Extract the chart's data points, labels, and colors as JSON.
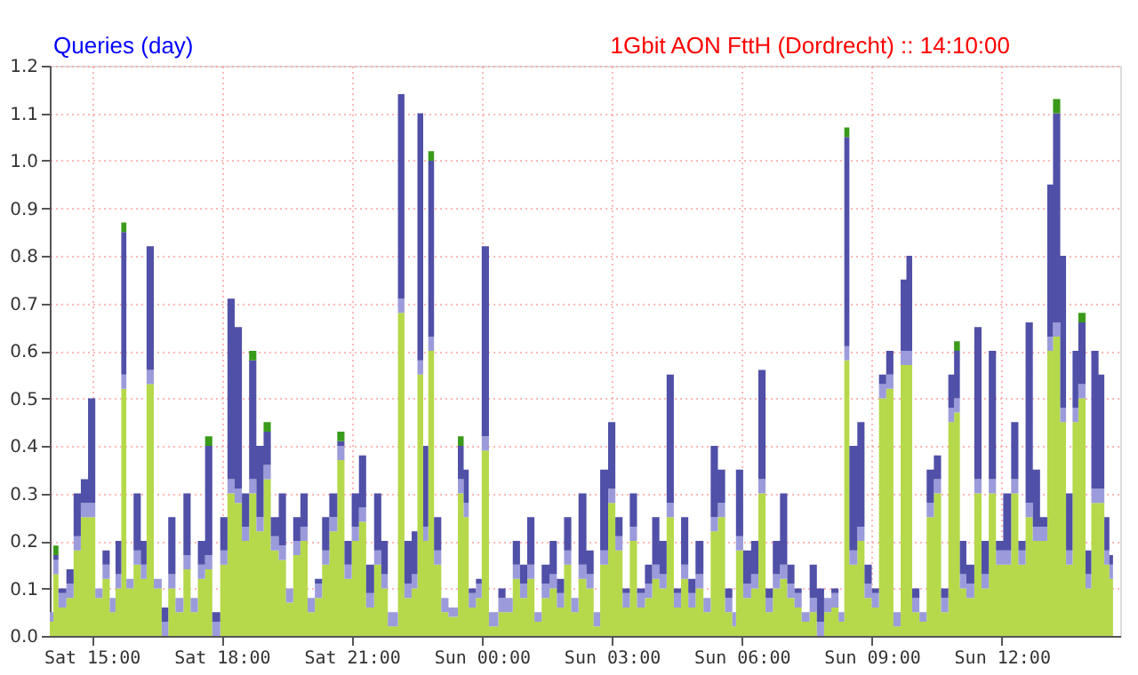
{
  "chart_data": {
    "type": "area",
    "stacked": true,
    "title": "Queries (day)",
    "subtitle": "1Gbit AON FttH (Dordrecht) ::  14:10:00",
    "x": [
      "2000-01-01T14:02",
      "2000-01-01T14:07",
      "2000-01-01T14:14",
      "2000-01-01T14:25",
      "2000-01-01T14:35",
      "2000-01-01T14:45",
      "2000-01-01T14:55",
      "2000-01-01T15:05",
      "2000-01-01T15:15",
      "2000-01-01T15:25",
      "2000-01-01T15:33",
      "2000-01-01T15:41",
      "2000-01-01T15:48",
      "2000-01-01T15:58",
      "2000-01-01T16:08",
      "2000-01-01T16:16",
      "2000-01-01T16:26",
      "2000-01-01T16:37",
      "2000-01-01T16:46",
      "2000-01-01T16:56",
      "2000-01-01T17:07",
      "2000-01-01T17:17",
      "2000-01-01T17:27",
      "2000-01-01T17:37",
      "2000-01-01T17:47",
      "2000-01-01T17:58",
      "2000-01-01T18:08",
      "2000-01-01T18:18",
      "2000-01-01T18:28",
      "2000-01-01T18:38",
      "2000-01-01T18:48",
      "2000-01-01T18:58",
      "2000-01-01T19:08",
      "2000-01-01T19:19",
      "2000-01-01T19:29",
      "2000-01-01T19:39",
      "2000-01-01T19:49",
      "2000-01-01T19:59",
      "2000-01-01T20:09",
      "2000-01-01T20:19",
      "2000-01-01T20:29",
      "2000-01-01T20:40",
      "2000-01-01T20:50",
      "2000-01-01T21:00",
      "2000-01-01T21:10",
      "2000-01-01T21:20",
      "2000-01-01T21:31",
      "2000-01-01T21:41",
      "2000-01-01T21:50",
      "2000-01-01T22:04",
      "2000-01-01T22:13",
      "2000-01-01T22:23",
      "2000-01-01T22:31",
      "2000-01-01T22:39",
      "2000-01-01T22:46",
      "2000-01-01T22:54",
      "2000-01-01T23:04",
      "2000-01-01T23:14",
      "2000-01-01T23:27",
      "2000-01-01T23:35",
      "2000-01-01T23:42",
      "2000-01-01T23:52",
      "2000-01-02T00:00",
      "2000-01-02T00:10",
      "2000-01-02T00:23",
      "2000-01-02T00:33",
      "2000-01-02T00:43",
      "2000-01-02T00:53",
      "2000-01-02T01:03",
      "2000-01-02T01:13",
      "2000-01-02T01:23",
      "2000-01-02T01:34",
      "2000-01-02T01:44",
      "2000-01-02T01:54",
      "2000-01-02T02:04",
      "2000-01-02T02:14",
      "2000-01-02T02:25",
      "2000-01-02T02:35",
      "2000-01-02T02:44",
      "2000-01-02T02:55",
      "2000-01-02T03:05",
      "2000-01-02T03:15",
      "2000-01-02T03:25",
      "2000-01-02T03:35",
      "2000-01-02T03:46",
      "2000-01-02T03:56",
      "2000-01-02T04:06",
      "2000-01-02T04:16",
      "2000-01-02T04:26",
      "2000-01-02T04:36",
      "2000-01-02T04:46",
      "2000-01-02T04:56",
      "2000-01-02T05:07",
      "2000-01-02T05:17",
      "2000-01-02T05:27",
      "2000-01-02T05:37",
      "2000-01-02T05:47",
      "2000-01-02T05:52",
      "2000-01-02T06:02",
      "2000-01-02T06:13",
      "2000-01-02T06:23",
      "2000-01-02T06:33",
      "2000-01-02T06:43",
      "2000-01-02T06:53",
      "2000-01-02T07:03",
      "2000-01-02T07:13",
      "2000-01-02T07:23",
      "2000-01-02T07:34",
      "2000-01-02T07:44",
      "2000-01-02T07:54",
      "2000-01-02T08:04",
      "2000-01-02T08:14",
      "2000-01-02T08:22",
      "2000-01-02T08:29",
      "2000-01-02T08:40",
      "2000-01-02T08:50",
      "2000-01-02T09:00",
      "2000-01-02T09:10",
      "2000-01-02T09:20",
      "2000-01-02T09:30",
      "2000-01-02T09:40",
      "2000-01-02T09:48",
      "2000-01-02T09:56",
      "2000-01-02T10:06",
      "2000-01-02T10:16",
      "2000-01-02T10:26",
      "2000-01-02T10:36",
      "2000-01-02T10:46",
      "2000-01-02T10:54",
      "2000-01-02T11:02",
      "2000-01-02T11:11",
      "2000-01-02T11:22",
      "2000-01-02T11:32",
      "2000-01-02T11:42",
      "2000-01-02T11:52",
      "2000-01-02T12:02",
      "2000-01-02T12:13",
      "2000-01-02T12:23",
      "2000-01-02T12:33",
      "2000-01-02T12:43",
      "2000-01-02T12:53",
      "2000-01-02T13:03",
      "2000-01-02T13:11",
      "2000-01-02T13:21",
      "2000-01-02T13:29",
      "2000-01-02T13:38",
      "2000-01-02T13:46",
      "2000-01-02T13:56",
      "2000-01-02T14:04",
      "2000-01-02T14:14",
      "2000-01-02T14:22",
      "2000-01-02T14:29",
      "2000-01-02T14:34"
    ],
    "series": [
      {
        "color": "#b5d94a",
        "values": [
          0.03,
          0.13,
          0.06,
          0.08,
          0.18,
          0.25,
          0.25,
          0.08,
          0.12,
          0.05,
          0.1,
          0.52,
          0.1,
          0.15,
          0.12,
          0.53,
          0.1,
          0,
          0.1,
          0.05,
          0.14,
          0.05,
          0.12,
          0.14,
          0,
          0.15,
          0.3,
          0.28,
          0.2,
          0.3,
          0.22,
          0.33,
          0.18,
          0.16,
          0.07,
          0.17,
          0.2,
          0.05,
          0.08,
          0.15,
          0.22,
          0.37,
          0.12,
          0.2,
          0.24,
          0.06,
          0.15,
          0.1,
          0.02,
          0.68,
          0.08,
          0.1,
          0.55,
          0.2,
          0.6,
          0.15,
          0.05,
          0.04,
          0.3,
          0.25,
          0.06,
          0.08,
          0.39,
          0.02,
          0.05,
          0.05,
          0.12,
          0.08,
          0.12,
          0.03,
          0.08,
          0.1,
          0.06,
          0.15,
          0.05,
          0.12,
          0.1,
          0.02,
          0.15,
          0.28,
          0.18,
          0.06,
          0.2,
          0.06,
          0.08,
          0.12,
          0.1,
          0.25,
          0.06,
          0.12,
          0.06,
          0.1,
          0.05,
          0.22,
          0.25,
          0.05,
          0.02,
          0.18,
          0.08,
          0.1,
          0.3,
          0.05,
          0.1,
          0.12,
          0.08,
          0.06,
          0.03,
          0.05,
          0,
          0.05,
          0.06,
          0.03,
          0.58,
          0.15,
          0.2,
          0.08,
          0.06,
          0.5,
          0.52,
          0.02,
          0.57,
          0.57,
          0.05,
          0.03,
          0.25,
          0.3,
          0.05,
          0.45,
          0.47,
          0.1,
          0.08,
          0.3,
          0.1,
          0.3,
          0.15,
          0.15,
          0.3,
          0.15,
          0.25,
          0.2,
          0.2,
          0.6,
          0.63,
          0.45,
          0.15,
          0.45,
          0.5,
          0.1,
          0.28,
          0.28,
          0.15,
          0.12,
          0.1
        ]
      },
      {
        "color": "#9b9bdb",
        "values": [
          0.02,
          0.03,
          0.03,
          0.03,
          0.03,
          0.03,
          0.03,
          0.02,
          0.03,
          0.03,
          0.03,
          0.03,
          0.02,
          0.03,
          0.03,
          0.03,
          0.02,
          0.03,
          0.03,
          0.03,
          0.03,
          0.03,
          0.03,
          0.03,
          0.03,
          0.03,
          0.03,
          0.03,
          0.03,
          0.03,
          0.03,
          0.03,
          0.03,
          0.03,
          0.03,
          0.03,
          0.03,
          0.03,
          0.03,
          0.03,
          0.03,
          0.03,
          0.03,
          0.03,
          0.03,
          0.03,
          0.03,
          0.03,
          0.03,
          0.03,
          0.03,
          0.03,
          0.03,
          0.03,
          0.03,
          0.03,
          0.03,
          0.02,
          0.03,
          0.03,
          0.03,
          0.03,
          0.03,
          0.03,
          0.03,
          0.03,
          0.03,
          0.03,
          0.03,
          0.02,
          0.03,
          0.03,
          0.03,
          0.03,
          0.03,
          0.03,
          0.03,
          0.03,
          0.03,
          0.03,
          0.03,
          0.03,
          0.03,
          0.03,
          0.03,
          0.03,
          0.03,
          0.03,
          0.03,
          0.03,
          0.03,
          0.03,
          0.03,
          0.03,
          0.03,
          0.03,
          0.03,
          0.03,
          0.03,
          0.03,
          0.03,
          0.03,
          0.03,
          0.03,
          0.03,
          0.03,
          0.02,
          0.03,
          0.03,
          0.03,
          0.03,
          0.02,
          0.03,
          0.03,
          0.03,
          0.03,
          0.03,
          0.03,
          0.03,
          0.03,
          0.03,
          0.03,
          0.03,
          0.02,
          0.03,
          0.03,
          0.03,
          0.03,
          0.03,
          0.03,
          0.03,
          0.03,
          0.03,
          0.03,
          0.03,
          0.03,
          0.03,
          0.03,
          0.03,
          0.03,
          0.03,
          0.03,
          0.03,
          0.03,
          0.03,
          0.03,
          0.03,
          0.03,
          0.03,
          0.03,
          0.03,
          0.03,
          0.03
        ]
      },
      {
        "color": "#5050a8",
        "values": [
          0,
          0.01,
          0.01,
          0.03,
          0.09,
          0.05,
          0.22,
          0,
          0.03,
          0,
          0.07,
          0.3,
          0,
          0.12,
          0.05,
          0.26,
          0,
          0.03,
          0.12,
          0,
          0.13,
          0,
          0.05,
          0.23,
          0.02,
          0.07,
          0.38,
          0.34,
          0.07,
          0.25,
          0.15,
          0.07,
          0.04,
          0.11,
          0,
          0.05,
          0.07,
          0,
          0.01,
          0.07,
          0.05,
          0.01,
          0.05,
          0.07,
          0.11,
          0.06,
          0.12,
          0.07,
          0,
          0.43,
          0.09,
          0.09,
          0.52,
          0.17,
          0.37,
          0.07,
          0,
          0,
          0.07,
          0.07,
          0.01,
          0.01,
          0.4,
          0,
          0.02,
          0,
          0.05,
          0.04,
          0.1,
          0,
          0.04,
          0.07,
          0.03,
          0.07,
          0,
          0.15,
          0.05,
          0,
          0.17,
          0.14,
          0.04,
          0.01,
          0.07,
          0.01,
          0.04,
          0.1,
          0.07,
          0.27,
          0.01,
          0.1,
          0.03,
          0.07,
          0,
          0.15,
          0.07,
          0.02,
          0,
          0.14,
          0.07,
          0.07,
          0.23,
          0.02,
          0.07,
          0.15,
          0.04,
          0.01,
          0,
          0.07,
          0.07,
          0,
          0.01,
          0,
          0.44,
          0.22,
          0.22,
          0.04,
          0.01,
          0.02,
          0.05,
          0,
          0.15,
          0.2,
          0.02,
          0,
          0.07,
          0.05,
          0.02,
          0.07,
          0.1,
          0.07,
          0.04,
          0.32,
          0.07,
          0.27,
          0.02,
          0.12,
          0.12,
          0.02,
          0.38,
          0.12,
          0.02,
          0.32,
          0.44,
          0.32,
          0.12,
          0.12,
          0.13,
          0.05,
          0.29,
          0.24,
          0.07,
          0.02,
          0.03
        ]
      },
      {
        "color": "#3a9a1a",
        "values": [
          0,
          0.02,
          0,
          0,
          0,
          0,
          0,
          0,
          0,
          0,
          0,
          0.02,
          0,
          0,
          0,
          0,
          0,
          0,
          0,
          0,
          0,
          0,
          0,
          0.02,
          0,
          0,
          0,
          0,
          0,
          0.02,
          0,
          0.02,
          0,
          0,
          0,
          0,
          0,
          0,
          0,
          0,
          0,
          0.02,
          0,
          0,
          0,
          0,
          0,
          0,
          0,
          0,
          0,
          0,
          0,
          0,
          0.02,
          0,
          0,
          0,
          0.02,
          0,
          0,
          0,
          0,
          0,
          0,
          0,
          0,
          0,
          0,
          0,
          0,
          0,
          0,
          0,
          0,
          0,
          0,
          0,
          0,
          0,
          0,
          0,
          0,
          0,
          0,
          0,
          0,
          0,
          0,
          0,
          0,
          0,
          0,
          0,
          0,
          0,
          0,
          0,
          0,
          0,
          0,
          0,
          0,
          0,
          0,
          0,
          0,
          0,
          0,
          0,
          0,
          0,
          0.02,
          0,
          0,
          0,
          0,
          0,
          0,
          0,
          0,
          0,
          0,
          0,
          0,
          0,
          0,
          0,
          0.02,
          0,
          0,
          0,
          0,
          0,
          0,
          0,
          0,
          0,
          0,
          0,
          0,
          0,
          0.03,
          0,
          0,
          0,
          0.02,
          0,
          0,
          0,
          0,
          0,
          0
        ]
      }
    ],
    "xlim": [
      "2000-01-01T14:02",
      "2000-01-02T14:44"
    ],
    "xticks": [
      {
        "value": "2000-01-01T15:00",
        "label": "Sat 15:00"
      },
      {
        "value": "2000-01-01T18:00",
        "label": "Sat 18:00"
      },
      {
        "value": "2000-01-01T21:00",
        "label": "Sat 21:00"
      },
      {
        "value": "2000-01-02T00:00",
        "label": "Sun 00:00"
      },
      {
        "value": "2000-01-02T03:00",
        "label": "Sun 03:00"
      },
      {
        "value": "2000-01-02T06:00",
        "label": "Sun 06:00"
      },
      {
        "value": "2000-01-02T09:00",
        "label": "Sun 09:00"
      },
      {
        "value": "2000-01-02T12:00",
        "label": "Sun 12:00"
      }
    ],
    "ylim": [
      0,
      1.2
    ],
    "yticks": [
      {
        "value": 0,
        "label": "0.0"
      },
      0.1,
      0.2,
      0.3,
      0.4,
      0.5,
      0.6,
      0.7,
      0.8,
      0.9,
      {
        "value": 1,
        "label": "1.0"
      },
      1.1,
      1.2
    ],
    "grid": true
  }
}
